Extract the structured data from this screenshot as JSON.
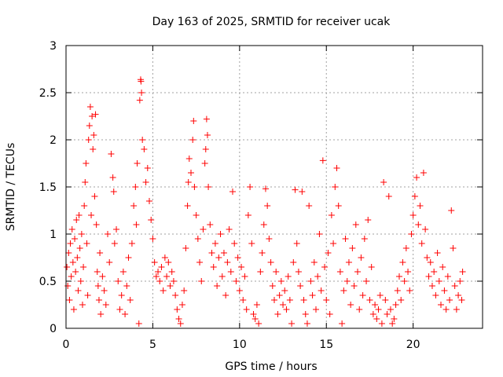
{
  "chart_data": {
    "type": "scatter",
    "title": "Day 163 of 2025, SRMTID for receiver ucak",
    "xlabel": "GPS time / hours",
    "ylabel": "SRMTID / TECUs",
    "xlim": [
      0,
      24
    ],
    "ylim": [
      0,
      3
    ],
    "x_ticks": [
      0,
      5,
      10,
      15,
      20
    ],
    "x_tick_labels": [
      "0",
      "5",
      "10",
      "15",
      "20"
    ],
    "y_ticks": [
      0,
      0.5,
      1,
      1.5,
      2,
      2.5,
      3
    ],
    "y_tick_labels": [
      "0",
      "0.5",
      "1",
      "1.5",
      "2",
      "2.5",
      "3"
    ],
    "grid": true,
    "marker": "+",
    "series": [
      {
        "name": "SRMTID",
        "color": "#ff0000",
        "points": [
          [
            0.05,
            0.65
          ],
          [
            0.1,
            0.45
          ],
          [
            0.15,
            0.8
          ],
          [
            0.2,
            0.3
          ],
          [
            0.25,
            0.9
          ],
          [
            0.3,
            0.55
          ],
          [
            0.35,
            1.05
          ],
          [
            0.4,
            0.7
          ],
          [
            0.45,
            0.2
          ],
          [
            0.5,
            0.95
          ],
          [
            0.55,
            0.6
          ],
          [
            0.6,
            1.15
          ],
          [
            0.65,
            0.75
          ],
          [
            0.7,
            0.4
          ],
          [
            0.75,
            1.2
          ],
          [
            0.8,
            0.85
          ],
          [
            0.85,
            0.5
          ],
          [
            0.9,
            1.0
          ],
          [
            0.95,
            0.25
          ],
          [
            1.0,
            0.65
          ],
          [
            1.05,
            1.3
          ],
          [
            1.1,
            1.55
          ],
          [
            1.15,
            1.75
          ],
          [
            1.2,
            0.9
          ],
          [
            1.25,
            0.35
          ],
          [
            1.3,
            2.0
          ],
          [
            1.35,
            2.15
          ],
          [
            1.4,
            2.35
          ],
          [
            1.45,
            1.2
          ],
          [
            1.5,
            2.25
          ],
          [
            1.55,
            1.9
          ],
          [
            1.6,
            2.05
          ],
          [
            1.65,
            1.4
          ],
          [
            1.7,
            2.27
          ],
          [
            1.75,
            1.1
          ],
          [
            1.8,
            0.6
          ],
          [
            1.85,
            0.45
          ],
          [
            1.9,
            0.3
          ],
          [
            1.95,
            0.8
          ],
          [
            2.0,
            0.15
          ],
          [
            2.1,
            0.55
          ],
          [
            2.2,
            0.4
          ],
          [
            2.3,
            0.25
          ],
          [
            2.4,
            1.0
          ],
          [
            2.5,
            0.7
          ],
          [
            2.6,
            1.85
          ],
          [
            2.7,
            1.6
          ],
          [
            2.75,
            1.45
          ],
          [
            2.8,
            0.9
          ],
          [
            2.9,
            1.05
          ],
          [
            3.0,
            0.5
          ],
          [
            3.1,
            0.2
          ],
          [
            3.2,
            0.35
          ],
          [
            3.3,
            0.6
          ],
          [
            3.4,
            0.15
          ],
          [
            3.5,
            0.45
          ],
          [
            3.6,
            0.75
          ],
          [
            3.7,
            0.3
          ],
          [
            3.8,
            0.9
          ],
          [
            3.9,
            1.3
          ],
          [
            4.0,
            1.5
          ],
          [
            4.05,
            1.1
          ],
          [
            4.1,
            1.75
          ],
          [
            4.2,
            0.05
          ],
          [
            4.25,
            2.42
          ],
          [
            4.3,
            2.64
          ],
          [
            4.32,
            2.62
          ],
          [
            4.35,
            2.5
          ],
          [
            4.4,
            2.0
          ],
          [
            4.5,
            1.9
          ],
          [
            4.6,
            1.55
          ],
          [
            4.7,
            1.7
          ],
          [
            4.8,
            1.35
          ],
          [
            4.9,
            1.15
          ],
          [
            5.0,
            0.95
          ],
          [
            5.1,
            0.7
          ],
          [
            5.2,
            0.55
          ],
          [
            5.3,
            0.6
          ],
          [
            5.4,
            0.5
          ],
          [
            5.5,
            0.65
          ],
          [
            5.6,
            0.4
          ],
          [
            5.7,
            0.75
          ],
          [
            5.8,
            0.55
          ],
          [
            5.9,
            0.7
          ],
          [
            6.0,
            0.45
          ],
          [
            6.1,
            0.6
          ],
          [
            6.2,
            0.5
          ],
          [
            6.3,
            0.35
          ],
          [
            6.4,
            0.2
          ],
          [
            6.5,
            0.1
          ],
          [
            6.6,
            0.05
          ],
          [
            6.7,
            0.25
          ],
          [
            6.8,
            0.4
          ],
          [
            6.9,
            0.85
          ],
          [
            7.0,
            1.3
          ],
          [
            7.05,
            1.55
          ],
          [
            7.1,
            1.8
          ],
          [
            7.2,
            1.65
          ],
          [
            7.3,
            2.0
          ],
          [
            7.35,
            2.2
          ],
          [
            7.4,
            1.5
          ],
          [
            7.5,
            1.2
          ],
          [
            7.6,
            0.95
          ],
          [
            7.7,
            0.7
          ],
          [
            7.8,
            0.5
          ],
          [
            7.9,
            1.05
          ],
          [
            8.0,
            1.75
          ],
          [
            8.05,
            1.9
          ],
          [
            8.1,
            2.22
          ],
          [
            8.15,
            2.05
          ],
          [
            8.2,
            1.5
          ],
          [
            8.3,
            1.1
          ],
          [
            8.4,
            0.8
          ],
          [
            8.5,
            0.65
          ],
          [
            8.6,
            0.9
          ],
          [
            8.7,
            0.45
          ],
          [
            8.8,
            0.75
          ],
          [
            8.9,
            1.0
          ],
          [
            9.0,
            0.55
          ],
          [
            9.1,
            0.8
          ],
          [
            9.2,
            0.35
          ],
          [
            9.3,
            0.7
          ],
          [
            9.4,
            1.05
          ],
          [
            9.5,
            0.6
          ],
          [
            9.6,
            1.45
          ],
          [
            9.7,
            0.9
          ],
          [
            9.8,
            0.5
          ],
          [
            9.9,
            0.75
          ],
          [
            10.0,
            0.4
          ],
          [
            10.1,
            0.65
          ],
          [
            10.2,
            0.3
          ],
          [
            10.3,
            0.55
          ],
          [
            10.4,
            0.2
          ],
          [
            10.5,
            1.2
          ],
          [
            10.6,
            1.5
          ],
          [
            10.7,
            0.9
          ],
          [
            10.8,
            0.15
          ],
          [
            10.9,
            0.1
          ],
          [
            11.0,
            0.25
          ],
          [
            11.1,
            0.05
          ],
          [
            11.2,
            0.6
          ],
          [
            11.3,
            0.8
          ],
          [
            11.4,
            1.1
          ],
          [
            11.5,
            1.48
          ],
          [
            11.6,
            1.3
          ],
          [
            11.7,
            0.95
          ],
          [
            11.8,
            0.7
          ],
          [
            11.9,
            0.45
          ],
          [
            12.0,
            0.3
          ],
          [
            12.1,
            0.6
          ],
          [
            12.2,
            0.15
          ],
          [
            12.3,
            0.35
          ],
          [
            12.4,
            0.5
          ],
          [
            12.5,
            0.25
          ],
          [
            12.6,
            0.4
          ],
          [
            12.7,
            0.2
          ],
          [
            12.8,
            0.55
          ],
          [
            12.9,
            0.3
          ],
          [
            13.0,
            0.05
          ],
          [
            13.1,
            0.7
          ],
          [
            13.2,
            1.47
          ],
          [
            13.3,
            0.9
          ],
          [
            13.4,
            0.6
          ],
          [
            13.5,
            0.45
          ],
          [
            13.6,
            1.45
          ],
          [
            13.7,
            0.3
          ],
          [
            13.8,
            0.15
          ],
          [
            13.9,
            0.05
          ],
          [
            14.0,
            1.3
          ],
          [
            14.1,
            0.5
          ],
          [
            14.2,
            0.35
          ],
          [
            14.3,
            0.7
          ],
          [
            14.4,
            0.2
          ],
          [
            14.5,
            0.55
          ],
          [
            14.6,
            1.0
          ],
          [
            14.7,
            0.4
          ],
          [
            14.8,
            1.78
          ],
          [
            14.9,
            0.65
          ],
          [
            15.0,
            0.3
          ],
          [
            15.1,
            0.8
          ],
          [
            15.2,
            0.15
          ],
          [
            15.3,
            1.2
          ],
          [
            15.4,
            0.9
          ],
          [
            15.5,
            1.5
          ],
          [
            15.6,
            1.7
          ],
          [
            15.7,
            1.3
          ],
          [
            15.8,
            0.6
          ],
          [
            15.9,
            0.05
          ],
          [
            16.0,
            0.4
          ],
          [
            16.1,
            0.95
          ],
          [
            16.2,
            0.5
          ],
          [
            16.3,
            0.7
          ],
          [
            16.4,
            0.25
          ],
          [
            16.5,
            0.85
          ],
          [
            16.6,
            0.45
          ],
          [
            16.7,
            1.1
          ],
          [
            16.8,
            0.6
          ],
          [
            16.9,
            0.2
          ],
          [
            17.0,
            0.75
          ],
          [
            17.1,
            0.35
          ],
          [
            17.2,
            0.95
          ],
          [
            17.3,
            0.5
          ],
          [
            17.4,
            1.15
          ],
          [
            17.5,
            0.3
          ],
          [
            17.6,
            0.65
          ],
          [
            17.7,
            0.15
          ],
          [
            17.8,
            0.25
          ],
          [
            17.9,
            0.1
          ],
          [
            18.0,
            0.2
          ],
          [
            18.1,
            0.35
          ],
          [
            18.2,
            0.05
          ],
          [
            18.3,
            1.55
          ],
          [
            18.4,
            0.3
          ],
          [
            18.5,
            0.15
          ],
          [
            18.6,
            1.4
          ],
          [
            18.7,
            0.2
          ],
          [
            18.8,
            0.05
          ],
          [
            18.9,
            0.1
          ],
          [
            19.0,
            0.25
          ],
          [
            19.1,
            0.4
          ],
          [
            19.2,
            0.55
          ],
          [
            19.3,
            0.3
          ],
          [
            19.4,
            0.7
          ],
          [
            19.5,
            0.5
          ],
          [
            19.6,
            0.85
          ],
          [
            19.7,
            0.6
          ],
          [
            19.8,
            0.4
          ],
          [
            19.9,
            1.0
          ],
          [
            20.0,
            1.2
          ],
          [
            20.1,
            1.4
          ],
          [
            20.2,
            1.6
          ],
          [
            20.3,
            1.1
          ],
          [
            20.4,
            1.3
          ],
          [
            20.5,
            0.9
          ],
          [
            20.6,
            1.65
          ],
          [
            20.7,
            1.05
          ],
          [
            20.8,
            0.75
          ],
          [
            20.9,
            0.55
          ],
          [
            21.0,
            0.7
          ],
          [
            21.1,
            0.45
          ],
          [
            21.2,
            0.6
          ],
          [
            21.3,
            0.35
          ],
          [
            21.4,
            0.8
          ],
          [
            21.5,
            0.5
          ],
          [
            21.6,
            0.25
          ],
          [
            21.7,
            0.65
          ],
          [
            21.8,
            0.4
          ],
          [
            21.9,
            0.2
          ],
          [
            22.0,
            0.55
          ],
          [
            22.1,
            0.3
          ],
          [
            22.2,
            1.25
          ],
          [
            22.3,
            0.85
          ],
          [
            22.4,
            0.45
          ],
          [
            22.5,
            0.2
          ],
          [
            22.6,
            0.35
          ],
          [
            22.7,
            0.5
          ],
          [
            22.8,
            0.3
          ],
          [
            22.85,
            0.6
          ]
        ]
      }
    ]
  }
}
